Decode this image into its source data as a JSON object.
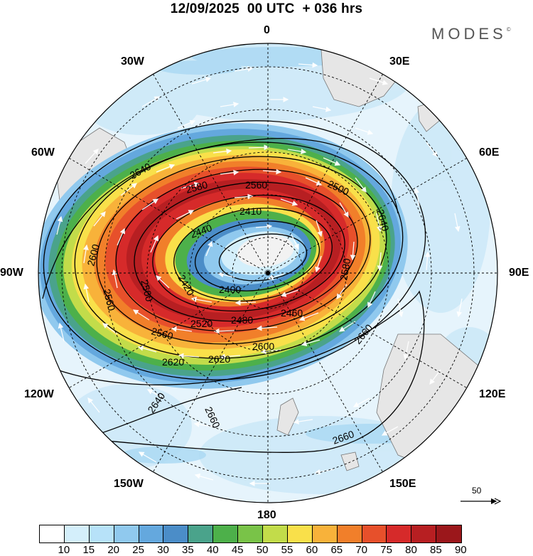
{
  "header": {
    "title": "12/09/2025  00 UTC  + 036 hrs",
    "brand": "MODES",
    "brand_mark": "©"
  },
  "map": {
    "projection": "south-polar-stereographic",
    "longitude_labels": {
      "lon_0": "0",
      "lon_30e": "30E",
      "lon_60e": "60E",
      "lon_90e": "90E",
      "lon_120e": "120E",
      "lon_150e": "150E",
      "lon_180": "180",
      "lon_150w": "150W",
      "lon_120w": "120W",
      "lon_90w": "90W",
      "lon_60w": "60W",
      "lon_30w": "30W"
    },
    "contour_labels": [
      "2640",
      "2580",
      "2560",
      "2410",
      "2440",
      "2600",
      "2420",
      "2400",
      "2500",
      "2560",
      "2520",
      "2480",
      "2460",
      "2580",
      "2640",
      "2660",
      "2640",
      "2660",
      "2660",
      "2620",
      "2620",
      "2600",
      "2560",
      "2500"
    ],
    "vector_reference": {
      "value": "50"
    }
  },
  "colors": {
    "pole_ice": "#f2f2f2",
    "land": "#e9e9e9",
    "contour": "#000000",
    "wind_vector": "#ffffff"
  },
  "colorbar": {
    "colors": [
      "#ffffff",
      "#d4effb",
      "#b7e2f9",
      "#90c9ee",
      "#64a8de",
      "#4b8dc8",
      "#4aa38b",
      "#4db04a",
      "#79c348",
      "#c2dc4a",
      "#f9e04a",
      "#f8b23a",
      "#f17f2a",
      "#e7502b",
      "#d62a2a",
      "#b71f22",
      "#9b171b"
    ],
    "labels": [
      "10",
      "15",
      "20",
      "25",
      "30",
      "35",
      "40",
      "45",
      "50",
      "55",
      "60",
      "65",
      "70",
      "75",
      "80",
      "85",
      "90"
    ]
  }
}
